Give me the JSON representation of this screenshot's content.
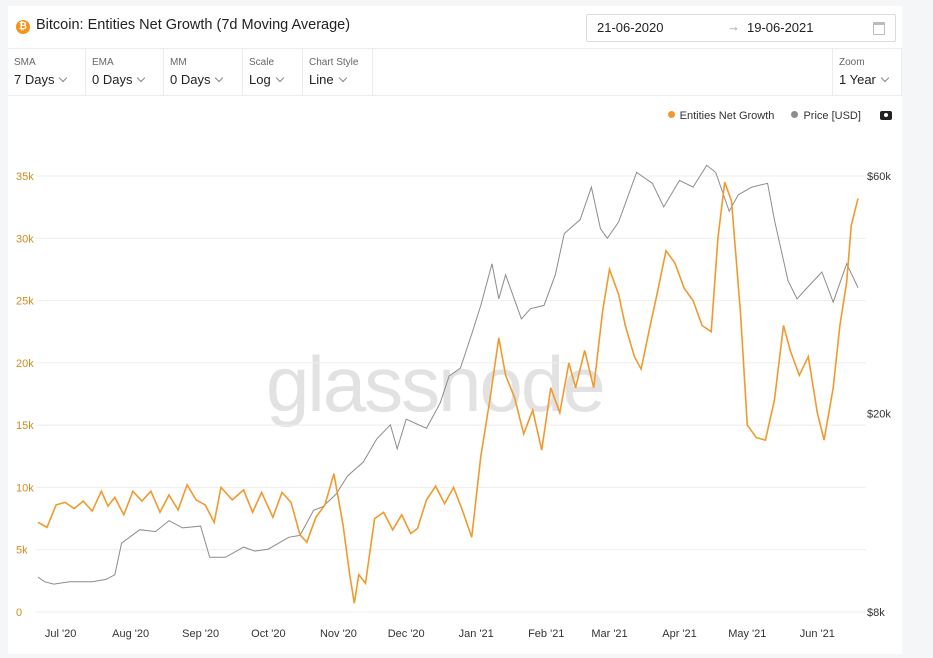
{
  "header": {
    "title": "Bitcoin: Entities Net Growth (7d Moving Average)",
    "asset_icon": "bitcoin-icon",
    "date_start": "21-06-2020",
    "date_end": "19-06-2021",
    "arrow": "→",
    "btc_glyph": "₿"
  },
  "controls": {
    "sma": {
      "label": "SMA",
      "value": "7 Days"
    },
    "ema": {
      "label": "EMA",
      "value": "0 Days"
    },
    "mm": {
      "label": "MM",
      "value": "0 Days"
    },
    "scale": {
      "label": "Scale",
      "value": "Log"
    },
    "style": {
      "label": "Chart Style",
      "value": "Line"
    },
    "zoom": {
      "label": "Zoom",
      "value": "1 Year"
    }
  },
  "watermark": "glassnode",
  "colors": {
    "growth": "#f09a2e",
    "price": "#8c8c8c",
    "left_axis": "#d48a1e"
  },
  "chart_data": {
    "type": "line",
    "x_range": [
      "2020-06-21",
      "2021-06-19"
    ],
    "xticks": [
      "Jul '20",
      "Aug '20",
      "Sep '20",
      "Oct '20",
      "Nov '20",
      "Dec '20",
      "Jan '21",
      "Feb '21",
      "Mar '21",
      "Apr '21",
      "May '21",
      "Jun '21"
    ],
    "y_left": {
      "ticks": [
        0,
        5000,
        10000,
        15000,
        20000,
        25000,
        30000,
        35000
      ],
      "tick_labels": [
        "0",
        "5k",
        "10k",
        "15k",
        "20k",
        "25k",
        "30k",
        "35k"
      ],
      "range": [
        0,
        35000
      ]
    },
    "y_right": {
      "scale": "log",
      "ticks": [
        8000,
        20000,
        60000
      ],
      "tick_labels": [
        "$8k",
        "$20k",
        "$60k"
      ],
      "range": [
        8000,
        60000
      ]
    },
    "grid": true,
    "legend_position": "top-right",
    "series": [
      {
        "name": "Entities Net Growth",
        "axis": "left",
        "points": [
          [
            "2020-06-21",
            7200
          ],
          [
            "2020-06-25",
            6800
          ],
          [
            "2020-06-29",
            8600
          ],
          [
            "2020-07-03",
            8800
          ],
          [
            "2020-07-07",
            8300
          ],
          [
            "2020-07-11",
            8900
          ],
          [
            "2020-07-15",
            8100
          ],
          [
            "2020-07-19",
            9700
          ],
          [
            "2020-07-22",
            8500
          ],
          [
            "2020-07-25",
            9200
          ],
          [
            "2020-07-29",
            7800
          ],
          [
            "2020-08-02",
            9700
          ],
          [
            "2020-08-06",
            8900
          ],
          [
            "2020-08-10",
            9700
          ],
          [
            "2020-08-14",
            8000
          ],
          [
            "2020-08-18",
            9400
          ],
          [
            "2020-08-22",
            8200
          ],
          [
            "2020-08-26",
            10200
          ],
          [
            "2020-08-30",
            9000
          ],
          [
            "2020-09-03",
            8600
          ],
          [
            "2020-09-07",
            7200
          ],
          [
            "2020-09-10",
            10000
          ],
          [
            "2020-09-15",
            9000
          ],
          [
            "2020-09-20",
            9800
          ],
          [
            "2020-09-24",
            8000
          ],
          [
            "2020-09-28",
            9600
          ],
          [
            "2020-10-03",
            7600
          ],
          [
            "2020-10-07",
            9600
          ],
          [
            "2020-10-11",
            8800
          ],
          [
            "2020-10-15",
            6200
          ],
          [
            "2020-10-18",
            5600
          ],
          [
            "2020-10-22",
            7600
          ],
          [
            "2020-10-26",
            8600
          ],
          [
            "2020-10-30",
            11100
          ],
          [
            "2020-11-03",
            7000
          ],
          [
            "2020-11-06",
            3000
          ],
          [
            "2020-11-08",
            700
          ],
          [
            "2020-11-10",
            3000
          ],
          [
            "2020-11-13",
            2300
          ],
          [
            "2020-11-17",
            7500
          ],
          [
            "2020-11-21",
            8000
          ],
          [
            "2020-11-25",
            6600
          ],
          [
            "2020-11-29",
            7800
          ],
          [
            "2020-12-03",
            6300
          ],
          [
            "2020-12-06",
            6700
          ],
          [
            "2020-12-10",
            9000
          ],
          [
            "2020-12-14",
            10100
          ],
          [
            "2020-12-18",
            8700
          ],
          [
            "2020-12-22",
            10000
          ],
          [
            "2020-12-26",
            8100
          ],
          [
            "2020-12-30",
            6000
          ],
          [
            "2021-01-03",
            12500
          ],
          [
            "2021-01-07",
            17000
          ],
          [
            "2021-01-11",
            22000
          ],
          [
            "2021-01-14",
            19000
          ],
          [
            "2021-01-18",
            17200
          ],
          [
            "2021-01-22",
            14300
          ],
          [
            "2021-01-26",
            16200
          ],
          [
            "2021-01-30",
            13000
          ],
          [
            "2021-02-03",
            18000
          ],
          [
            "2021-02-07",
            16000
          ],
          [
            "2021-02-11",
            20000
          ],
          [
            "2021-02-14",
            18000
          ],
          [
            "2021-02-18",
            21000
          ],
          [
            "2021-02-22",
            18000
          ],
          [
            "2021-02-26",
            24200
          ],
          [
            "2021-03-01",
            27500
          ],
          [
            "2021-03-05",
            25500
          ],
          [
            "2021-03-08",
            23000
          ],
          [
            "2021-03-12",
            20500
          ],
          [
            "2021-03-15",
            19500
          ],
          [
            "2021-03-19",
            23000
          ],
          [
            "2021-03-22",
            25500
          ],
          [
            "2021-03-26",
            29000
          ],
          [
            "2021-03-30",
            28000
          ],
          [
            "2021-04-03",
            26000
          ],
          [
            "2021-04-07",
            25000
          ],
          [
            "2021-04-11",
            23000
          ],
          [
            "2021-04-15",
            22500
          ],
          [
            "2021-04-18",
            30000
          ],
          [
            "2021-04-21",
            34500
          ],
          [
            "2021-04-24",
            33000
          ],
          [
            "2021-04-28",
            24000
          ],
          [
            "2021-05-01",
            15000
          ],
          [
            "2021-05-05",
            14000
          ],
          [
            "2021-05-09",
            13800
          ],
          [
            "2021-05-13",
            17000
          ],
          [
            "2021-05-17",
            23000
          ],
          [
            "2021-05-20",
            21000
          ],
          [
            "2021-05-24",
            19000
          ],
          [
            "2021-05-28",
            20500
          ],
          [
            "2021-06-01",
            16000
          ],
          [
            "2021-06-04",
            13800
          ],
          [
            "2021-06-08",
            18000
          ],
          [
            "2021-06-11",
            23000
          ],
          [
            "2021-06-14",
            26500
          ],
          [
            "2021-06-16",
            31000
          ],
          [
            "2021-06-19",
            33200
          ]
        ]
      },
      {
        "name": "Price [USD]",
        "axis": "right",
        "points": [
          [
            "2020-06-21",
            9400
          ],
          [
            "2020-06-24",
            9200
          ],
          [
            "2020-06-28",
            9100
          ],
          [
            "2020-07-05",
            9200
          ],
          [
            "2020-07-15",
            9200
          ],
          [
            "2020-07-21",
            9300
          ],
          [
            "2020-07-25",
            9500
          ],
          [
            "2020-07-28",
            11000
          ],
          [
            "2020-08-05",
            11700
          ],
          [
            "2020-08-12",
            11600
          ],
          [
            "2020-08-18",
            12200
          ],
          [
            "2020-08-24",
            11800
          ],
          [
            "2020-09-01",
            11900
          ],
          [
            "2020-09-05",
            10300
          ],
          [
            "2020-09-12",
            10300
          ],
          [
            "2020-09-20",
            10800
          ],
          [
            "2020-09-25",
            10600
          ],
          [
            "2020-10-01",
            10700
          ],
          [
            "2020-10-10",
            11300
          ],
          [
            "2020-10-15",
            11400
          ],
          [
            "2020-10-21",
            12800
          ],
          [
            "2020-10-25",
            13000
          ],
          [
            "2020-10-31",
            13800
          ],
          [
            "2020-11-05",
            15000
          ],
          [
            "2020-11-12",
            16000
          ],
          [
            "2020-11-18",
            17800
          ],
          [
            "2020-11-24",
            19000
          ],
          [
            "2020-11-27",
            17000
          ],
          [
            "2020-12-01",
            19500
          ],
          [
            "2020-12-10",
            18700
          ],
          [
            "2020-12-16",
            21000
          ],
          [
            "2020-12-20",
            23800
          ],
          [
            "2020-12-25",
            24700
          ],
          [
            "2020-12-30",
            28900
          ],
          [
            "2021-01-03",
            33000
          ],
          [
            "2021-01-08",
            40000
          ],
          [
            "2021-01-11",
            34000
          ],
          [
            "2021-01-14",
            38000
          ],
          [
            "2021-01-21",
            31000
          ],
          [
            "2021-01-25",
            32500
          ],
          [
            "2021-01-31",
            33000
          ],
          [
            "2021-02-05",
            38000
          ],
          [
            "2021-02-09",
            46000
          ],
          [
            "2021-02-16",
            49000
          ],
          [
            "2021-02-21",
            57000
          ],
          [
            "2021-02-25",
            47000
          ],
          [
            "2021-02-28",
            45000
          ],
          [
            "2021-03-05",
            48500
          ],
          [
            "2021-03-13",
            61000
          ],
          [
            "2021-03-20",
            58000
          ],
          [
            "2021-03-25",
            52000
          ],
          [
            "2021-04-01",
            58800
          ],
          [
            "2021-04-07",
            57000
          ],
          [
            "2021-04-13",
            63000
          ],
          [
            "2021-04-17",
            61000
          ],
          [
            "2021-04-23",
            51000
          ],
          [
            "2021-04-27",
            55000
          ],
          [
            "2021-05-03",
            57000
          ],
          [
            "2021-05-10",
            58000
          ],
          [
            "2021-05-13",
            49000
          ],
          [
            "2021-05-19",
            37000
          ],
          [
            "2021-05-23",
            34000
          ],
          [
            "2021-05-28",
            36000
          ],
          [
            "2021-06-03",
            38500
          ],
          [
            "2021-06-08",
            33500
          ],
          [
            "2021-06-14",
            40000
          ],
          [
            "2021-06-19",
            35800
          ]
        ]
      }
    ]
  }
}
